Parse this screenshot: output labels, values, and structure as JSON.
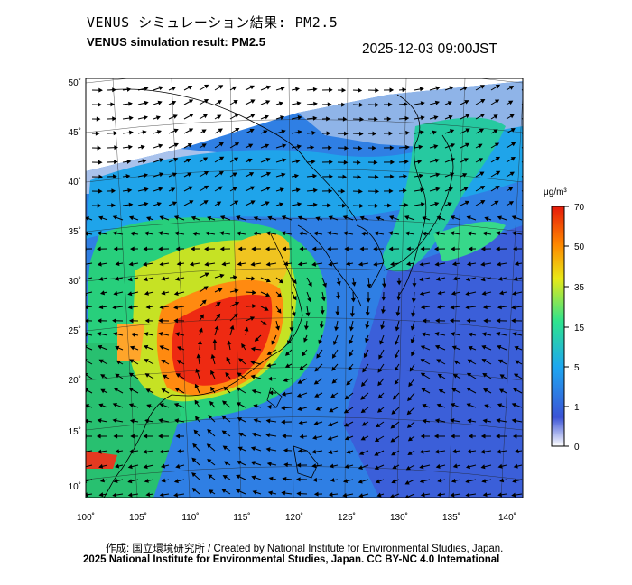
{
  "title_jp": "VENUS シミュレーション結果: PM2.5",
  "title_en": "VENUS simulation result: PM2.5",
  "timestamp": "2025-12-03 09:00JST",
  "map": {
    "variable": "PM2.5",
    "projection": "conic",
    "lon_ticks": [
      "100˚",
      "105˚",
      "110˚",
      "115˚",
      "120˚",
      "125˚",
      "130˚",
      "135˚",
      "140˚"
    ],
    "lat_ticks": [
      "50˚",
      "45˚",
      "40˚",
      "35˚",
      "30˚",
      "25˚",
      "20˚",
      "15˚",
      "10˚"
    ],
    "overlay": "wind-vectors"
  },
  "colorbar": {
    "unit": "μg/m³",
    "labels": [
      "70",
      "50",
      "35",
      "15",
      "5",
      "1",
      "0"
    ],
    "colors": [
      "#ffffff",
      "#3b53d6",
      "#1ea7f0",
      "#2ee38e",
      "#e9e817",
      "#ff8800",
      "#e61a0a"
    ]
  },
  "credit_line_1": "作成: 国立環境研究所 / Created by National Institute for Environmental Studies, Japan.",
  "credit_line_2": "2025 National Institute for Environmental Studies, Japan. CC BY-NC 4.0 International"
}
